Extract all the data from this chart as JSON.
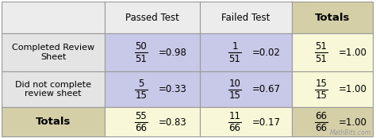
{
  "col_headers": [
    "",
    "Passed Test",
    "Failed Test",
    "Totals"
  ],
  "row_labels": [
    "Completed Review\nSheet",
    "Did not complete\nreview sheet",
    "Totals"
  ],
  "cell_numerators": [
    [
      "50",
      "1",
      "51"
    ],
    [
      "5",
      "10",
      "15"
    ],
    [
      "55",
      "11",
      "66"
    ]
  ],
  "cell_denominators": [
    [
      "51",
      "51",
      "51"
    ],
    [
      "15",
      "15",
      "15"
    ],
    [
      "66",
      "66",
      "66"
    ]
  ],
  "cell_decimals": [
    [
      "=0.98",
      "=0.02",
      "=1.00"
    ],
    [
      "=0.33",
      "=0.67",
      "=1.00"
    ],
    [
      "=0.83",
      "=0.17",
      "=1.00"
    ]
  ],
  "header_row_bg_left": "#ececec",
  "header_row_bg_mid": "#ececec",
  "header_row_bg_right": "#d5cfa8",
  "row_label_bg_data": "#e4e4e4",
  "row_label_bg_totals": "#d5cfa8",
  "cell_bg_data": "#c8c8e8",
  "cell_bg_totals_col": "#f8f8d8",
  "cell_bg_totals_row": "#f8f8d8",
  "cell_bg_bottom_right": "#d5cfa8",
  "border_color": "#999999",
  "watermark": "MathBits.com",
  "fig_bg": "#ffffff"
}
